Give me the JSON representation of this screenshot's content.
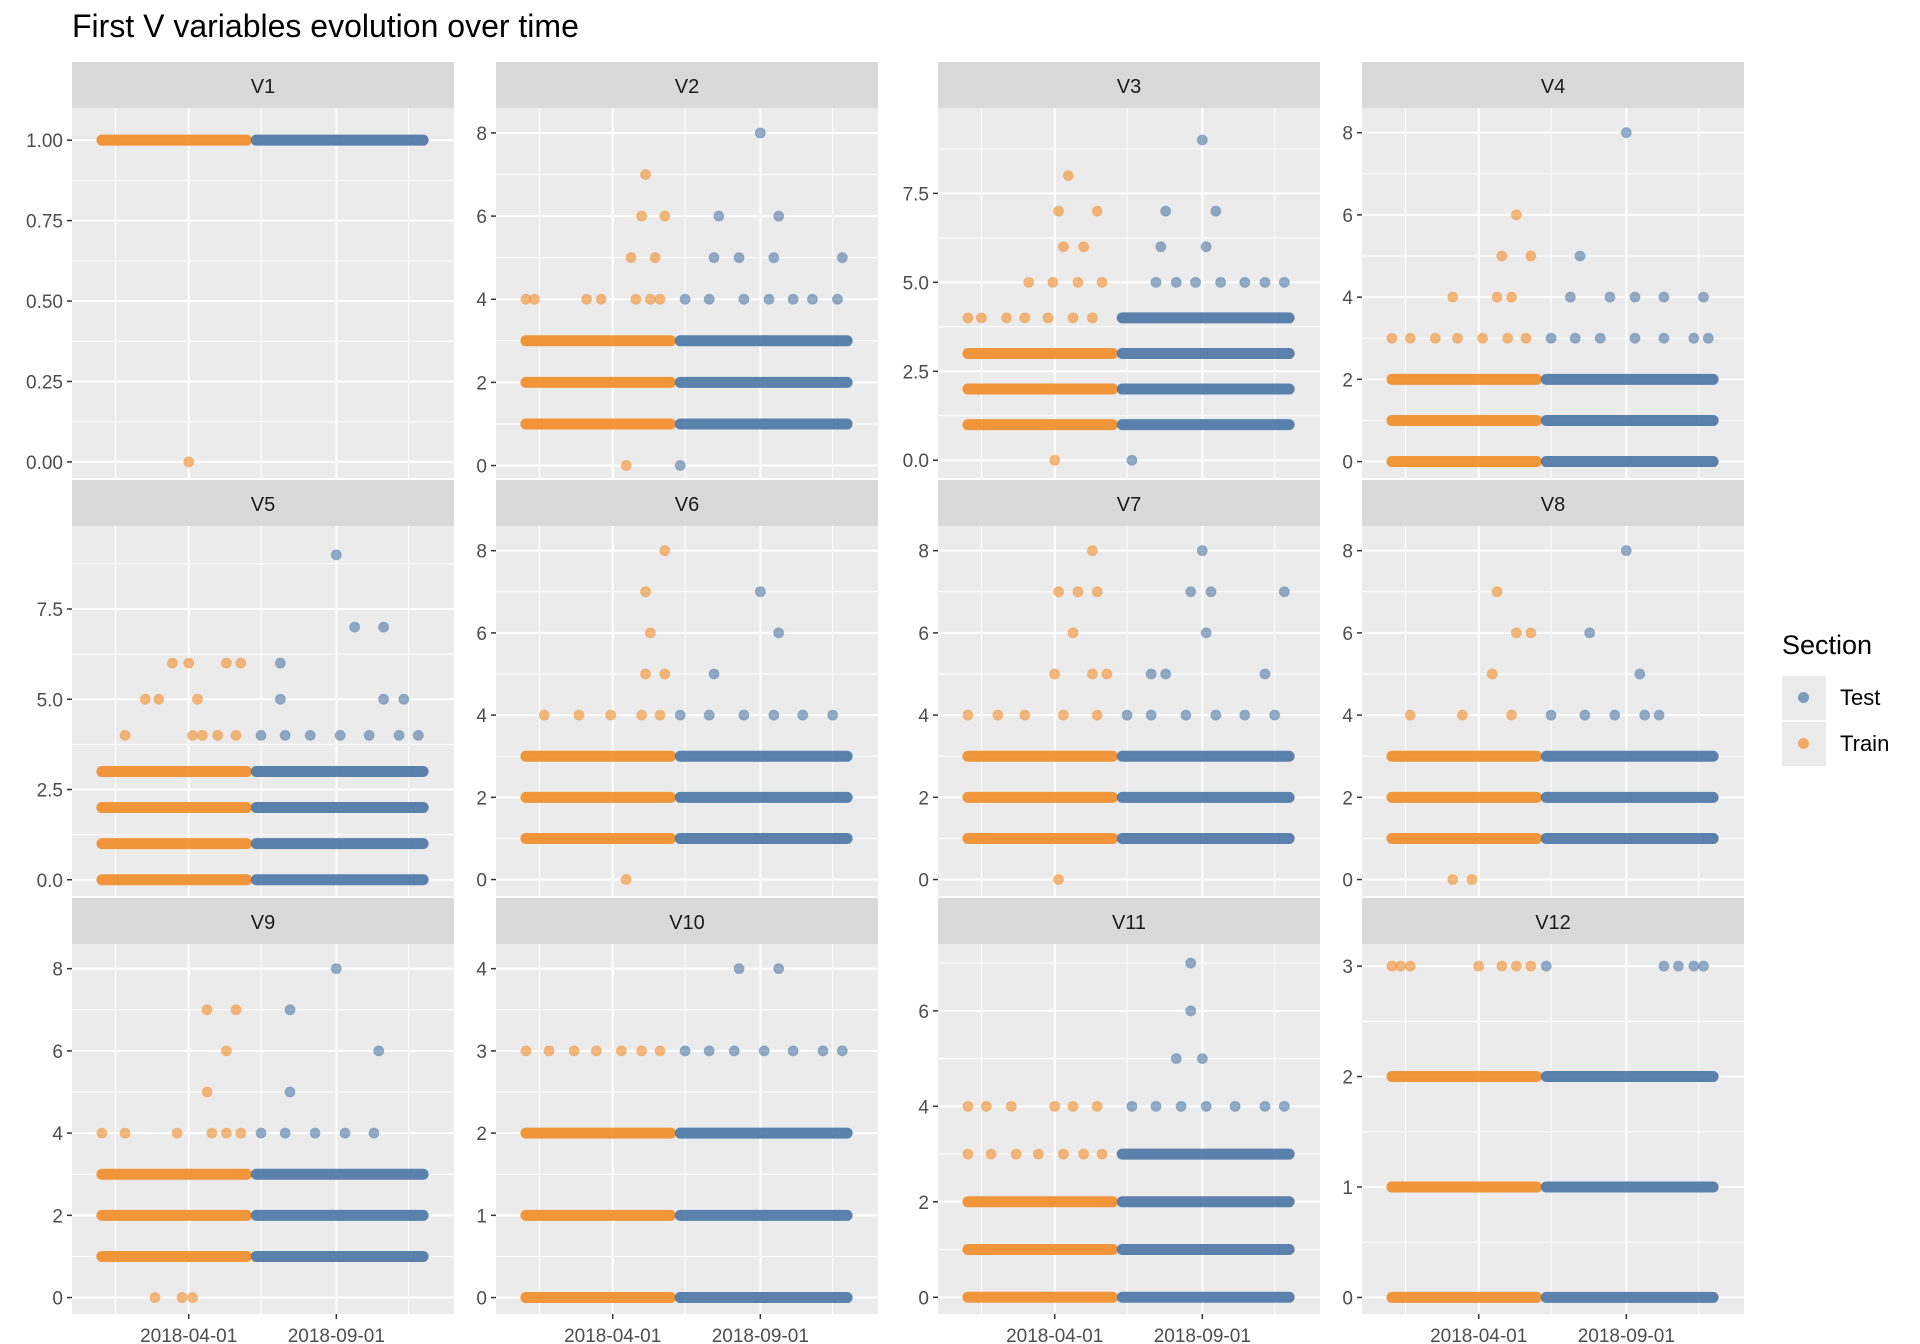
{
  "title": "First V variables evolution over time",
  "legend": {
    "title": "Section",
    "items": [
      {
        "label": "Test",
        "color": "#4e79a7"
      },
      {
        "label": "Train",
        "color": "#f28e2b"
      }
    ]
  },
  "x_tick_labels": [
    "2018-04-01",
    "2018-09-01"
  ],
  "chart_data": {
    "type": "scatter",
    "title": "First V variables evolution over time",
    "xlabel": "",
    "ylabel": "",
    "legend_position": "right",
    "grid": true,
    "x_ticks": [
      "2018-04-01",
      "2018-09-01"
    ],
    "x_range": [
      "2017-12-01",
      "2019-01-01"
    ],
    "series_colors": {
      "Test": "#4e79a7",
      "Train": "#f28e2b"
    },
    "panels": [
      {
        "name": "V1",
        "ylim": [
          -0.05,
          1.1
        ],
        "yticks": [
          "0.00",
          "0.25",
          "0.50",
          "0.75",
          "1.00"
        ],
        "train_levels": [
          1
        ],
        "test_levels": [
          1
        ],
        "train_sparse": [
          [
            0,
            [
              "2018-04-01"
            ]
          ]
        ],
        "test_sparse": []
      },
      {
        "name": "V2",
        "ylim": [
          -0.3,
          8.6
        ],
        "yticks": [
          "0",
          "2",
          "4",
          "6",
          "8"
        ],
        "train_levels": [
          1,
          2,
          3
        ],
        "test_levels": [
          1,
          2,
          3
        ],
        "train_sparse": [
          [
            0,
            [
              "2018-04-15"
            ]
          ],
          [
            4,
            [
              "2018-01-01",
              "2018-01-10",
              "2018-03-05",
              "2018-03-20",
              "2018-04-25",
              "2018-05-10",
              "2018-05-20"
            ]
          ],
          [
            5,
            [
              "2018-04-20",
              "2018-05-15"
            ]
          ],
          [
            6,
            [
              "2018-05-01",
              "2018-05-25"
            ]
          ],
          [
            7,
            [
              "2018-05-05"
            ]
          ]
        ],
        "test_sparse": [
          [
            0,
            [
              "2018-06-10"
            ]
          ],
          [
            4,
            [
              "2018-06-15",
              "2018-07-10",
              "2018-08-15",
              "2018-09-10",
              "2018-10-05",
              "2018-10-25",
              "2018-11-20"
            ]
          ],
          [
            5,
            [
              "2018-07-15",
              "2018-08-10",
              "2018-09-15",
              "2018-11-25"
            ]
          ],
          [
            6,
            [
              "2018-07-20",
              "2018-09-20"
            ]
          ],
          [
            8,
            [
              "2018-09-01"
            ]
          ]
        ]
      },
      {
        "name": "V3",
        "ylim": [
          -0.5,
          9.9
        ],
        "yticks": [
          "0.0",
          "2.5",
          "5.0",
          "7.5"
        ],
        "train_levels": [
          1,
          2,
          3
        ],
        "test_levels": [
          1,
          2,
          3,
          4
        ],
        "train_sparse": [
          [
            0,
            [
              "2018-04-01"
            ]
          ],
          [
            4,
            [
              "2018-01-01",
              "2018-01-15",
              "2018-02-10",
              "2018-03-01",
              "2018-03-25",
              "2018-04-20",
              "2018-05-10"
            ]
          ],
          [
            5,
            [
              "2018-03-05",
              "2018-03-30",
              "2018-04-25",
              "2018-05-20"
            ]
          ],
          [
            6,
            [
              "2018-04-10",
              "2018-05-01"
            ]
          ],
          [
            7,
            [
              "2018-04-05",
              "2018-05-15"
            ]
          ],
          [
            8,
            [
              "2018-04-15"
            ]
          ]
        ],
        "test_sparse": [
          [
            0,
            [
              "2018-06-20"
            ]
          ],
          [
            5,
            [
              "2018-07-15",
              "2018-08-05",
              "2018-08-25",
              "2018-09-20",
              "2018-10-15",
              "2018-11-05",
              "2018-11-25"
            ]
          ],
          [
            6,
            [
              "2018-07-20",
              "2018-09-05"
            ]
          ],
          [
            7,
            [
              "2018-07-25",
              "2018-09-15"
            ]
          ],
          [
            9,
            [
              "2018-09-01"
            ]
          ]
        ]
      },
      {
        "name": "V4",
        "ylim": [
          -0.4,
          8.6
        ],
        "yticks": [
          "0",
          "2",
          "4",
          "6",
          "8"
        ],
        "train_levels": [
          0,
          1,
          2
        ],
        "test_levels": [
          0,
          1,
          2
        ],
        "train_sparse": [
          [
            3,
            [
              "2018-01-01",
              "2018-01-20",
              "2018-02-15",
              "2018-03-10",
              "2018-04-05",
              "2018-05-01",
              "2018-05-20"
            ]
          ],
          [
            4,
            [
              "2018-03-05",
              "2018-04-20",
              "2018-05-05"
            ]
          ],
          [
            5,
            [
              "2018-04-25",
              "2018-05-25"
            ]
          ],
          [
            6,
            [
              "2018-05-10"
            ]
          ]
        ],
        "test_sparse": [
          [
            3,
            [
              "2018-06-15",
              "2018-07-10",
              "2018-08-05",
              "2018-09-10",
              "2018-10-10",
              "2018-11-10",
              "2018-11-25"
            ]
          ],
          [
            4,
            [
              "2018-07-05",
              "2018-08-15",
              "2018-09-10",
              "2018-10-10",
              "2018-11-20"
            ]
          ],
          [
            5,
            [
              "2018-07-15"
            ]
          ],
          [
            8,
            [
              "2018-09-01"
            ]
          ]
        ]
      },
      {
        "name": "V5",
        "ylim": [
          -0.45,
          9.8
        ],
        "yticks": [
          "0.0",
          "2.5",
          "5.0",
          "7.5"
        ],
        "train_levels": [
          0,
          1,
          2,
          3
        ],
        "test_levels": [
          0,
          1,
          2,
          3
        ],
        "train_sparse": [
          [
            4,
            [
              "2018-01-25",
              "2018-04-05",
              "2018-04-15",
              "2018-05-01",
              "2018-05-20"
            ]
          ],
          [
            5,
            [
              "2018-02-15",
              "2018-03-01",
              "2018-04-10"
            ]
          ],
          [
            6,
            [
              "2018-03-15",
              "2018-04-01",
              "2018-05-10",
              "2018-05-25"
            ]
          ]
        ],
        "test_sparse": [
          [
            4,
            [
              "2018-06-15",
              "2018-07-10",
              "2018-08-05",
              "2018-09-05",
              "2018-10-05",
              "2018-11-05",
              "2018-11-25"
            ]
          ],
          [
            5,
            [
              "2018-07-05",
              "2018-10-20",
              "2018-11-10"
            ]
          ],
          [
            6,
            [
              "2018-07-05"
            ]
          ],
          [
            7,
            [
              "2018-09-20",
              "2018-10-20"
            ]
          ],
          [
            9,
            [
              "2018-09-01"
            ]
          ]
        ]
      },
      {
        "name": "V6",
        "ylim": [
          -0.4,
          8.6
        ],
        "yticks": [
          "0",
          "2",
          "4",
          "6",
          "8"
        ],
        "train_levels": [
          1,
          2,
          3
        ],
        "test_levels": [
          1,
          2,
          3
        ],
        "train_sparse": [
          [
            0,
            [
              "2018-04-15"
            ]
          ],
          [
            4,
            [
              "2018-01-20",
              "2018-02-25",
              "2018-03-30",
              "2018-05-01",
              "2018-05-20"
            ]
          ],
          [
            5,
            [
              "2018-05-05",
              "2018-05-25"
            ]
          ],
          [
            6,
            [
              "2018-05-10"
            ]
          ],
          [
            7,
            [
              "2018-05-05"
            ]
          ],
          [
            8,
            [
              "2018-05-25"
            ]
          ]
        ],
        "test_sparse": [
          [
            4,
            [
              "2018-06-10",
              "2018-07-10",
              "2018-08-15",
              "2018-09-15",
              "2018-10-15",
              "2018-11-15"
            ]
          ],
          [
            5,
            [
              "2018-07-15"
            ]
          ],
          [
            6,
            [
              "2018-09-20"
            ]
          ],
          [
            7,
            [
              "2018-09-01"
            ]
          ]
        ]
      },
      {
        "name": "V7",
        "ylim": [
          -0.4,
          8.6
        ],
        "yticks": [
          "0",
          "2",
          "4",
          "6",
          "8"
        ],
        "train_levels": [
          1,
          2,
          3
        ],
        "test_levels": [
          1,
          2,
          3
        ],
        "train_sparse": [
          [
            0,
            [
              "2018-04-05"
            ]
          ],
          [
            4,
            [
              "2018-01-01",
              "2018-02-01",
              "2018-03-01",
              "2018-04-10",
              "2018-05-15"
            ]
          ],
          [
            5,
            [
              "2018-04-01",
              "2018-05-10",
              "2018-05-25"
            ]
          ],
          [
            6,
            [
              "2018-04-20"
            ]
          ],
          [
            7,
            [
              "2018-04-05",
              "2018-04-25",
              "2018-05-15"
            ]
          ],
          [
            8,
            [
              "2018-05-10"
            ]
          ]
        ],
        "test_sparse": [
          [
            4,
            [
              "2018-06-15",
              "2018-07-10",
              "2018-08-15",
              "2018-09-15",
              "2018-10-15",
              "2018-11-15"
            ]
          ],
          [
            5,
            [
              "2018-07-10",
              "2018-07-25",
              "2018-11-05"
            ]
          ],
          [
            6,
            [
              "2018-09-05"
            ]
          ],
          [
            7,
            [
              "2018-08-20",
              "2018-09-10",
              "2018-11-25"
            ]
          ],
          [
            8,
            [
              "2018-09-01"
            ]
          ]
        ]
      },
      {
        "name": "V8",
        "ylim": [
          -0.4,
          8.6
        ],
        "yticks": [
          "0",
          "2",
          "4",
          "6",
          "8"
        ],
        "train_levels": [
          1,
          2,
          3
        ],
        "test_levels": [
          1,
          2,
          3
        ],
        "train_sparse": [
          [
            0,
            [
              "2018-03-05",
              "2018-03-25"
            ]
          ],
          [
            4,
            [
              "2018-01-20",
              "2018-03-15",
              "2018-05-05"
            ]
          ],
          [
            5,
            [
              "2018-04-15"
            ]
          ],
          [
            6,
            [
              "2018-05-10",
              "2018-05-25"
            ]
          ],
          [
            7,
            [
              "2018-04-20"
            ]
          ]
        ],
        "test_sparse": [
          [
            4,
            [
              "2018-06-15",
              "2018-07-20",
              "2018-08-20",
              "2018-09-20",
              "2018-10-05"
            ]
          ],
          [
            5,
            [
              "2018-09-15"
            ]
          ],
          [
            6,
            [
              "2018-07-25"
            ]
          ],
          [
            8,
            [
              "2018-09-01"
            ]
          ]
        ]
      },
      {
        "name": "V9",
        "ylim": [
          -0.4,
          8.6
        ],
        "yticks": [
          "0",
          "2",
          "4",
          "6",
          "8"
        ],
        "train_levels": [
          1,
          2,
          3
        ],
        "test_levels": [
          1,
          2,
          3
        ],
        "train_sparse": [
          [
            0,
            [
              "2018-02-25",
              "2018-03-25",
              "2018-04-05"
            ]
          ],
          [
            4,
            [
              "2018-01-01",
              "2018-01-25",
              "2018-03-20",
              "2018-04-25",
              "2018-05-10",
              "2018-05-25"
            ]
          ],
          [
            5,
            [
              "2018-04-20"
            ]
          ],
          [
            6,
            [
              "2018-05-10"
            ]
          ],
          [
            7,
            [
              "2018-04-20",
              "2018-05-20"
            ]
          ]
        ],
        "test_sparse": [
          [
            4,
            [
              "2018-06-15",
              "2018-07-10",
              "2018-08-10",
              "2018-09-10",
              "2018-10-10"
            ]
          ],
          [
            5,
            [
              "2018-07-15"
            ]
          ],
          [
            6,
            [
              "2018-10-15"
            ]
          ],
          [
            7,
            [
              "2018-07-15"
            ]
          ],
          [
            8,
            [
              "2018-09-01"
            ]
          ]
        ]
      },
      {
        "name": "V10",
        "ylim": [
          -0.2,
          4.3
        ],
        "yticks": [
          "0",
          "1",
          "2",
          "3",
          "4"
        ],
        "train_levels": [
          0,
          1,
          2
        ],
        "test_levels": [
          0,
          1,
          2
        ],
        "train_sparse": [
          [
            3,
            [
              "2018-01-01",
              "2018-01-25",
              "2018-02-20",
              "2018-03-15",
              "2018-04-10",
              "2018-05-01",
              "2018-05-20"
            ]
          ]
        ],
        "test_sparse": [
          [
            3,
            [
              "2018-06-15",
              "2018-07-10",
              "2018-08-05",
              "2018-09-05",
              "2018-10-05",
              "2018-11-05",
              "2018-11-25"
            ]
          ],
          [
            4,
            [
              "2018-08-10",
              "2018-09-20"
            ]
          ]
        ]
      },
      {
        "name": "V11",
        "ylim": [
          -0.35,
          7.4
        ],
        "yticks": [
          "0",
          "2",
          "4",
          "6"
        ],
        "train_levels": [
          0,
          1,
          2
        ],
        "test_levels": [
          0,
          1,
          2,
          3
        ],
        "train_sparse": [
          [
            3,
            [
              "2018-01-01",
              "2018-01-25",
              "2018-02-20",
              "2018-03-15",
              "2018-04-10",
              "2018-05-01",
              "2018-05-20"
            ]
          ],
          [
            4,
            [
              "2018-01-01",
              "2018-01-20",
              "2018-02-15",
              "2018-04-01",
              "2018-04-20",
              "2018-05-15"
            ]
          ]
        ],
        "test_sparse": [
          [
            4,
            [
              "2018-06-20",
              "2018-07-15",
              "2018-08-10",
              "2018-09-05",
              "2018-10-05",
              "2018-11-05",
              "2018-11-25"
            ]
          ],
          [
            5,
            [
              "2018-08-05",
              "2018-09-01"
            ]
          ],
          [
            6,
            [
              "2018-08-20"
            ]
          ],
          [
            7,
            [
              "2018-08-20"
            ]
          ]
        ]
      },
      {
        "name": "V12",
        "ylim": [
          -0.15,
          3.2
        ],
        "yticks": [
          "0",
          "1",
          "2",
          "3"
        ],
        "train_levels": [
          0,
          1,
          2
        ],
        "test_levels": [
          0,
          1,
          2
        ],
        "train_sparse": [
          [
            3,
            [
              "2018-01-01",
              "2018-01-10",
              "2018-01-20",
              "2018-04-01",
              "2018-04-25",
              "2018-05-10",
              "2018-05-25"
            ]
          ]
        ],
        "test_sparse": [
          [
            3,
            [
              "2018-06-10",
              "2018-10-10",
              "2018-10-25",
              "2018-11-10",
              "2018-11-20"
            ]
          ]
        ]
      }
    ]
  }
}
